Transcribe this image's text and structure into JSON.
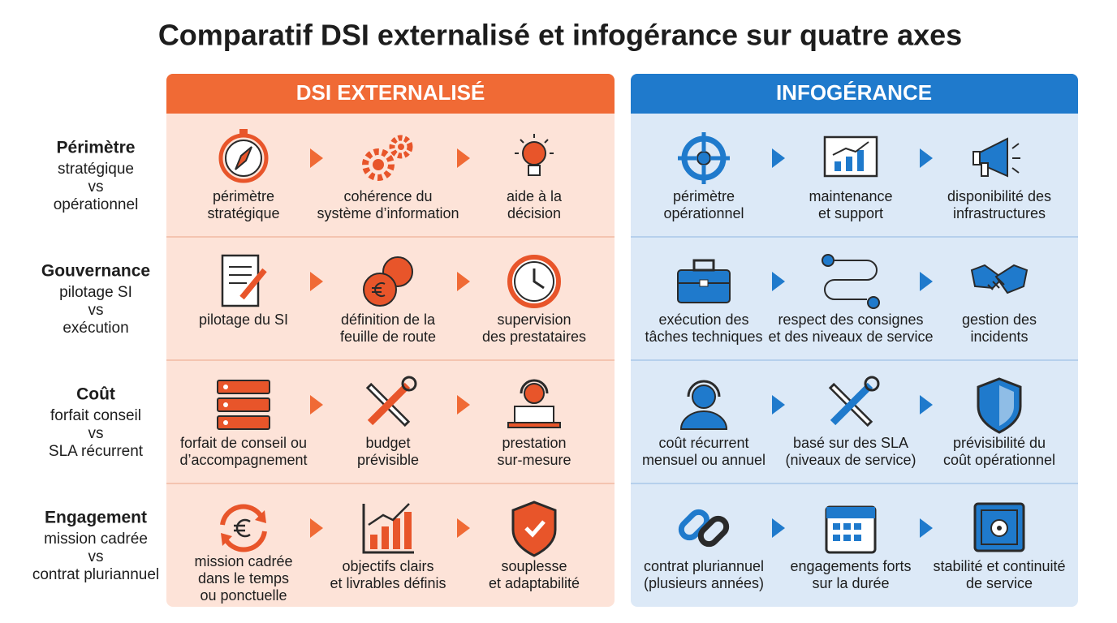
{
  "title": "Comparatif DSI externalisé et infogérance sur quatre axes",
  "columns": [
    {
      "title": "DSI EXTERNALISÉ"
    },
    {
      "title": "INFOGÉRANCE"
    }
  ],
  "rows": [
    {
      "axis": "Périmètre",
      "comparison": [
        "stratégique",
        "vs",
        "opérationnel"
      ],
      "cells": [
        [
          [
            "périmètre",
            "stratégique"
          ],
          [
            "cohérence du",
            "système d’information"
          ],
          [
            "aide à la",
            "décision"
          ]
        ],
        [
          [
            "périmètre",
            "opérationnel"
          ],
          [
            "maintenance",
            "et support"
          ],
          [
            "disponibilité des",
            "infrastructures"
          ]
        ]
      ]
    },
    {
      "axis": "Gouvernance",
      "comparison": [
        "pilotage SI",
        "vs",
        "exécution"
      ],
      "cells": [
        [
          [
            "pilotage du SI"
          ],
          [
            "définition de la",
            "feuille de route"
          ],
          [
            "supervision",
            "des prestataires"
          ]
        ],
        [
          [
            "exécution des",
            "tâches techniques"
          ],
          [
            "respect des consignes",
            "et des niveaux de service"
          ],
          [
            "gestion des",
            "incidents"
          ]
        ]
      ]
    },
    {
      "axis": "Coût",
      "comparison": [
        "forfait conseil",
        "vs",
        "SLA récurrent"
      ],
      "cells": [
        [
          [
            "forfait de conseil ou",
            "d’accompagnement"
          ],
          [
            "budget",
            "prévisible"
          ],
          [
            "prestation",
            "sur-mesure"
          ]
        ],
        [
          [
            "coût récurrent",
            "mensuel ou annuel"
          ],
          [
            "basé sur des SLA",
            "(niveaux de service)"
          ],
          [
            "prévisibilité du",
            "coût opérationnel"
          ]
        ]
      ]
    },
    {
      "axis": "Engagement",
      "comparison": [
        "mission cadrée",
        "vs",
        "contrat pluriannuel"
      ],
      "cells": [
        [
          [
            "mission cadrée",
            "dans le temps",
            "ou ponctuelle"
          ],
          [
            "objectifs clairs",
            "et livrables définis"
          ],
          [
            "souplesse",
            "et adaptabilité"
          ]
        ],
        [
          [
            "contrat pluriannuel",
            "(plusieurs années)"
          ],
          [
            "engagements forts",
            "sur la durée"
          ],
          [
            "stabilité et continuité",
            "de service"
          ]
        ]
      ]
    }
  ]
}
